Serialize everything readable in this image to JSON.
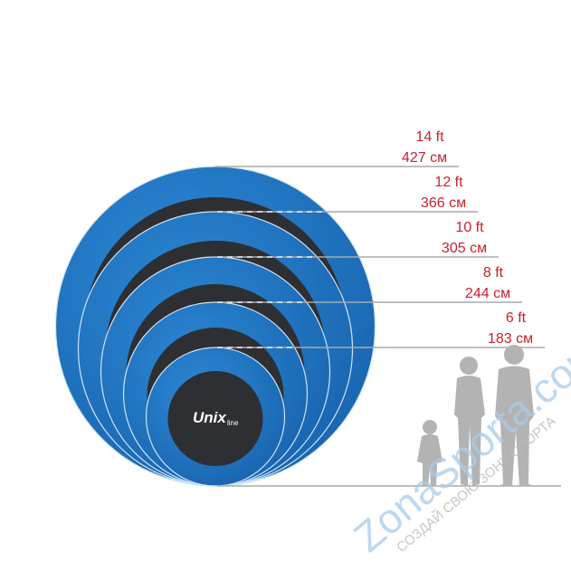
{
  "sizes": [
    {
      "ft": "14 ft",
      "cm": "427 см"
    },
    {
      "ft": "12 ft",
      "cm": "366 см"
    },
    {
      "ft": "10 ft",
      "cm": "305 см"
    },
    {
      "ft": "8 ft",
      "cm": "244 см"
    },
    {
      "ft": "6 ft",
      "cm": "183 см"
    }
  ],
  "logo": {
    "main": "Unix",
    "sub": "line"
  },
  "watermark": {
    "brand": "ZonaSporta.com",
    "slogan": "СОЗДАЙ СВОЮ ЗОНУ СПОРТА"
  },
  "colors": {
    "ring": "#1f74c4",
    "mat": "#2e2f33",
    "label": "#c8202f",
    "silhouette": "#b3b3b3",
    "line": "#aaaaaa",
    "watermark": "#a9cbe8"
  }
}
